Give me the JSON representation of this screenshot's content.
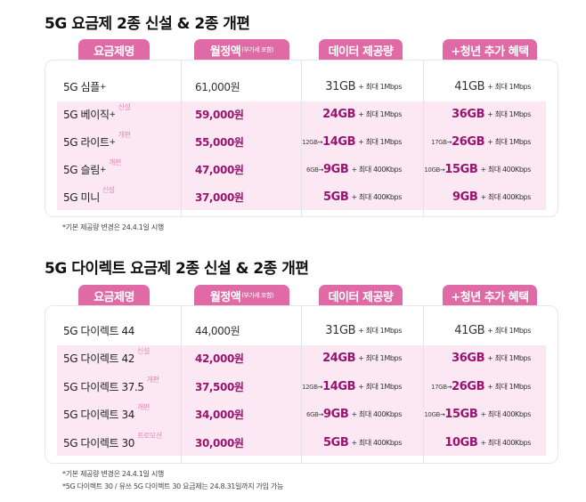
{
  "sections": [
    {
      "title": "5G 요금제 2종 신설 & 2종 개편",
      "headers": {
        "plan": "요금제명",
        "price": "월정액",
        "price_note": "(부가세 포함)",
        "data": "데이터 제공량",
        "youth": "+청년 추가 혜택"
      },
      "rows": [
        {
          "name": "5G 심플",
          "sup": "+",
          "tag": "",
          "price": "61,000원",
          "data_old": "",
          "data": "31GB",
          "data_suffix": "+ 최대 1Mbps",
          "youth_old": "",
          "youth": "41GB",
          "youth_suffix": "+ 최대 1Mbps",
          "highlight": false
        },
        {
          "name": "5G 베이직",
          "sup": "+",
          "tag": "신설",
          "price": "59,000원",
          "data_old": "",
          "data": "24GB",
          "data_suffix": "+ 최대 1Mbps",
          "youth_old": "",
          "youth": "36GB",
          "youth_suffix": "+ 최대 1Mbps",
          "highlight": true
        },
        {
          "name": "5G 라이트",
          "sup": "+",
          "tag": "개편",
          "price": "55,000원",
          "data_old": "12GB",
          "data": "14GB",
          "data_suffix": "+ 최대 1Mbps",
          "youth_old": "17GB",
          "youth": "26GB",
          "youth_suffix": "+ 최대 1Mbps",
          "highlight": true
        },
        {
          "name": "5G 슬림",
          "sup": "+",
          "tag": "개편",
          "price": "47,000원",
          "data_old": "6GB",
          "data": "9GB",
          "data_suffix": "+ 최대 400Kbps",
          "youth_old": "10GB",
          "youth": "15GB",
          "youth_suffix": "+ 최대 400Kbps",
          "highlight": true
        },
        {
          "name": "5G 미니",
          "sup": "",
          "tag": "신설",
          "price": "37,000원",
          "data_old": "",
          "data": "5GB",
          "data_suffix": "+ 최대 400Kbps",
          "youth_old": "",
          "youth": "9GB",
          "youth_suffix": "+ 최대 400Kbps",
          "highlight": true
        }
      ],
      "notes": [
        "*기본 제공량 변경은 24.4.1일 시행"
      ]
    },
    {
      "title": "5G 다이렉트 요금제 2종 신설 & 2종 개편",
      "headers": {
        "plan": "요금제명",
        "price": "월정액",
        "price_note": "(부가세 포함)",
        "data": "데이터 제공량",
        "youth": "+청년 추가 혜택"
      },
      "rows": [
        {
          "name": "5G 다이렉트 44",
          "sup": "",
          "tag": "",
          "price": "44,000원",
          "data_old": "",
          "data": "31GB",
          "data_suffix": "+ 최대 1Mbps",
          "youth_old": "",
          "youth": "41GB",
          "youth_suffix": "+ 최대 1Mbps",
          "highlight": false
        },
        {
          "name": "5G 다이렉트 42",
          "sup": "",
          "tag": "신설",
          "price": "42,000원",
          "data_old": "",
          "data": "24GB",
          "data_suffix": "+ 최대 1Mbps",
          "youth_old": "",
          "youth": "36GB",
          "youth_suffix": "+ 최대 1Mbps",
          "highlight": true
        },
        {
          "name": "5G 다이렉트 37.5",
          "sup": "",
          "tag": "개편",
          "price": "37,500원",
          "data_old": "12GB",
          "data": "14GB",
          "data_suffix": "+ 최대 1Mbps",
          "youth_old": "17GB",
          "youth": "26GB",
          "youth_suffix": "+ 최대 1Mbps",
          "highlight": true
        },
        {
          "name": "5G 다이렉트 34",
          "sup": "",
          "tag": "개편",
          "price": "34,000원",
          "data_old": "6GB",
          "data": "9GB",
          "data_suffix": "+ 최대 400Kbps",
          "youth_old": "10GB",
          "youth": "15GB",
          "youth_suffix": "+ 최대 400Kbps",
          "highlight": true
        },
        {
          "name": "5G 다이렉트 30",
          "sup": "",
          "tag": "프로모션",
          "price": "30,000원",
          "data_old": "",
          "data": "5GB",
          "data_suffix": "+ 최대 400Kbps",
          "youth_old": "",
          "youth": "10GB",
          "youth_suffix": "+ 최대 400Kbps",
          "highlight": true
        }
      ],
      "notes": [
        "*기본 제공량 변경은 24.4.1일 시행",
        "*5G 다이렉트 30 / 유쓰 5G 다이렉트 30 요금제는 24.8.31일까지 가입 가능"
      ]
    }
  ],
  "arrow": "→",
  "colors": {
    "tab": "#e06aa6",
    "highlight_text": "#9a1370",
    "band": "#fbe8f2"
  }
}
